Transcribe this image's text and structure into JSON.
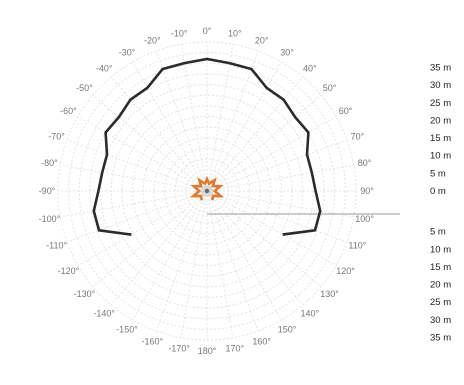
{
  "chart_data": {
    "type": "line",
    "subtype": "polar",
    "angle_unit": "degrees",
    "zero_direction": "top",
    "angular_ticks": [
      "0°",
      "10°",
      "20°",
      "30°",
      "40°",
      "50°",
      "60°",
      "70°",
      "80°",
      "90°",
      "100°",
      "110°",
      "120°",
      "130°",
      "140°",
      "150°",
      "160°",
      "170°",
      "180°",
      "-170°",
      "-160°",
      "-150°",
      "-140°",
      "-130°",
      "-120°",
      "-110°",
      "-100°",
      "-90°",
      "-80°",
      "-70°",
      "-60°",
      "-50°",
      "-40°",
      "-30°",
      "-20°",
      "-10°"
    ],
    "radial_axis": {
      "max": 35,
      "unit": "m",
      "upper_labels": [
        "35 m",
        "30 m",
        "25 m",
        "20 m",
        "15 m",
        "10 m",
        "5 m",
        "0 m"
      ],
      "lower_labels": [
        "5 m",
        "10 m",
        "15 m",
        "20 m",
        "25 m",
        "30 m",
        "35 m"
      ]
    },
    "grid": true,
    "series": [
      {
        "color": "#2b2b2b",
        "points": [
          {
            "angle": -120,
            "range": 20.5
          },
          {
            "angle": -110,
            "range": 27
          },
          {
            "angle": -100,
            "range": 27
          },
          {
            "angle": -90,
            "range": 25.5
          },
          {
            "angle": -80,
            "range": 25
          },
          {
            "angle": -70,
            "range": 25
          },
          {
            "angle": -60,
            "range": 27.5
          },
          {
            "angle": -50,
            "range": 27
          },
          {
            "angle": -40,
            "range": 28
          },
          {
            "angle": -30,
            "range": 28
          },
          {
            "angle": -20,
            "range": 30.5
          },
          {
            "angle": -10,
            "range": 30.5
          },
          {
            "angle": 0,
            "range": 31
          },
          {
            "angle": 10,
            "range": 30.5
          },
          {
            "angle": 20,
            "range": 30.5
          },
          {
            "angle": 30,
            "range": 28
          },
          {
            "angle": 40,
            "range": 28
          },
          {
            "angle": 50,
            "range": 27
          },
          {
            "angle": 60,
            "range": 27.5
          },
          {
            "angle": 70,
            "range": 25
          },
          {
            "angle": 80,
            "range": 25
          },
          {
            "angle": 90,
            "range": 25.5
          },
          {
            "angle": 100,
            "range": 27
          },
          {
            "angle": 110,
            "range": 27
          },
          {
            "angle": 120,
            "range": 20.5
          }
        ]
      },
      {
        "color": "#e07a2e",
        "points": [
          {
            "angle": -150,
            "range": 2.5
          },
          {
            "angle": -130,
            "range": 1.8
          },
          {
            "angle": -110,
            "range": 3.4
          },
          {
            "angle": -90,
            "range": 1.8
          },
          {
            "angle": -70,
            "range": 3.3
          },
          {
            "angle": -50,
            "range": 1.8
          },
          {
            "angle": -35,
            "range": 3.1
          },
          {
            "angle": -15,
            "range": 1.8
          },
          {
            "angle": 0,
            "range": 2.8
          },
          {
            "angle": 15,
            "range": 1.8
          },
          {
            "angle": 35,
            "range": 3.1
          },
          {
            "angle": 50,
            "range": 1.8
          },
          {
            "angle": 70,
            "range": 3.3
          },
          {
            "angle": 90,
            "range": 1.8
          },
          {
            "angle": 110,
            "range": 3.4
          },
          {
            "angle": 130,
            "range": 1.8
          },
          {
            "angle": 150,
            "range": 2.5
          }
        ]
      }
    ]
  }
}
